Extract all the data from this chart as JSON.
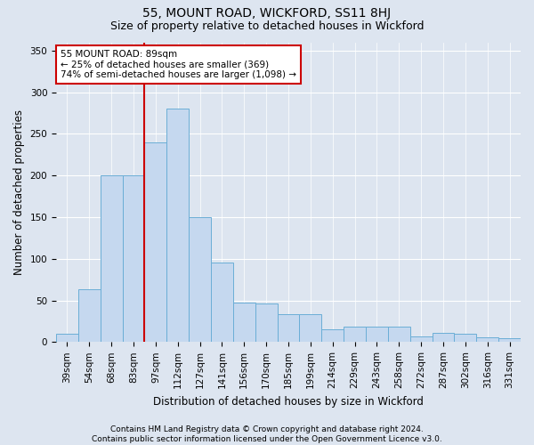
{
  "title": "55, MOUNT ROAD, WICKFORD, SS11 8HJ",
  "subtitle": "Size of property relative to detached houses in Wickford",
  "xlabel": "Distribution of detached houses by size in Wickford",
  "ylabel": "Number of detached properties",
  "categories": [
    "39sqm",
    "54sqm",
    "68sqm",
    "83sqm",
    "97sqm",
    "112sqm",
    "127sqm",
    "141sqm",
    "156sqm",
    "170sqm",
    "185sqm",
    "199sqm",
    "214sqm",
    "229sqm",
    "243sqm",
    "258sqm",
    "272sqm",
    "287sqm",
    "302sqm",
    "316sqm",
    "331sqm"
  ],
  "values": [
    10,
    63,
    200,
    200,
    240,
    280,
    150,
    95,
    47,
    46,
    33,
    33,
    15,
    18,
    18,
    18,
    7,
    11,
    10,
    6,
    5
  ],
  "bar_color": "#c5d8ef",
  "bar_edge_color": "#6baed6",
  "background_color": "#dde5f0",
  "vline_color": "#cc0000",
  "vline_pos": 3.5,
  "annotation_text": "55 MOUNT ROAD: 89sqm\n← 25% of detached houses are smaller (369)\n74% of semi-detached houses are larger (1,098) →",
  "annotation_box_color": "#ffffff",
  "annotation_box_edge_color": "#cc0000",
  "ylim": [
    0,
    360
  ],
  "yticks": [
    0,
    50,
    100,
    150,
    200,
    250,
    300,
    350
  ],
  "footer_text": "Contains HM Land Registry data © Crown copyright and database right 2024.\nContains public sector information licensed under the Open Government Licence v3.0.",
  "title_fontsize": 10,
  "subtitle_fontsize": 9,
  "axis_label_fontsize": 8.5,
  "tick_fontsize": 7.5,
  "annotation_fontsize": 7.5,
  "footer_fontsize": 6.5
}
